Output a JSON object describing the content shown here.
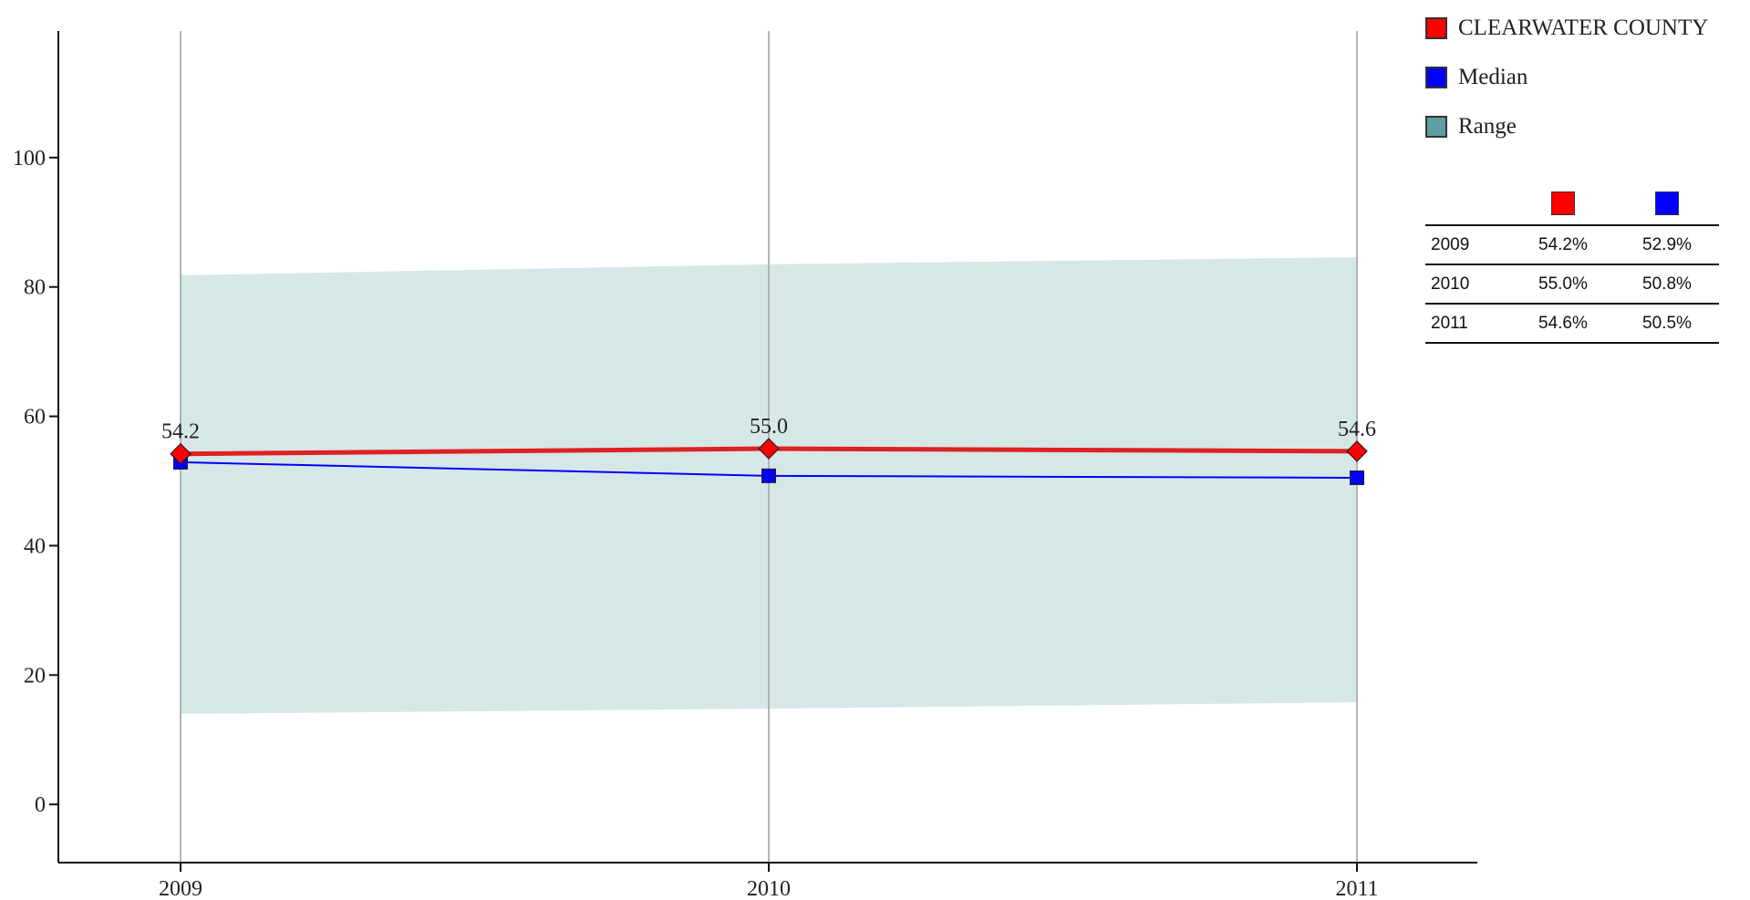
{
  "colors": {
    "county": "#ff0000",
    "county_line": "#dd2222",
    "median": "#0000ff",
    "range": "#5f9ea0",
    "range_fill": "#d6e7e7"
  },
  "legend": {
    "items": [
      {
        "label": "CLEARWATER COUNTY",
        "color": "#ff0000"
      },
      {
        "label": "Median",
        "color": "#0000ff"
      },
      {
        "label": "Range",
        "color": "#5f9ea0"
      }
    ]
  },
  "table": {
    "rows": [
      {
        "year": "2009",
        "county": "54.2%",
        "median": "52.9%"
      },
      {
        "year": "2010",
        "county": "55.0%",
        "median": "50.8%"
      },
      {
        "year": "2011",
        "county": "54.6%",
        "median": "50.5%"
      }
    ]
  },
  "chart_data": {
    "type": "line",
    "x": [
      "2009",
      "2010",
      "2011"
    ],
    "ylim": [
      -9,
      109
    ],
    "yticks": [
      0,
      20,
      40,
      60,
      80,
      100
    ],
    "grid": "vertical",
    "legend_position": "top-right",
    "series": [
      {
        "name": "CLEARWATER COUNTY",
        "values": [
          54.2,
          55.0,
          54.6
        ],
        "labels": [
          "54.2",
          "55.0",
          "54.6"
        ],
        "marker": "diamond"
      },
      {
        "name": "Median",
        "values": [
          52.9,
          50.8,
          50.5
        ],
        "marker": "square"
      }
    ],
    "range": {
      "name": "Range",
      "lower": [
        14.0,
        14.8,
        15.8
      ],
      "upper": [
        81.8,
        83.5,
        84.6
      ]
    }
  }
}
